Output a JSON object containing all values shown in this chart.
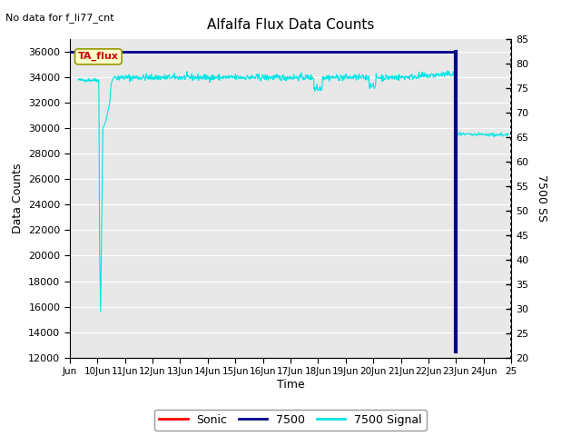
{
  "title": "Alfalfa Flux Data Counts",
  "subtitle": "No data for f_li77_cnt",
  "xlabel": "Time",
  "ylabel": "Data Counts",
  "ylabel_right": "7500 SS",
  "annotation": "TA_flux",
  "xlim_days": [
    9,
    25
  ],
  "ylim_left": [
    12000,
    37000
  ],
  "ylim_right": [
    20,
    85
  ],
  "left_yticks": [
    12000,
    14000,
    16000,
    18000,
    20000,
    22000,
    24000,
    26000,
    28000,
    30000,
    32000,
    34000,
    36000
  ],
  "right_yticks": [
    20,
    25,
    30,
    35,
    40,
    45,
    50,
    55,
    60,
    65,
    70,
    75,
    80,
    85
  ],
  "xtick_labels": [
    "Jun",
    "10Jun",
    "11Jun",
    "12Jun",
    "13Jun",
    "14Jun",
    "15Jun",
    "16Jun",
    "17Jun",
    "18Jun",
    "19Jun",
    "20Jun",
    "21Jun",
    "22Jun",
    "23Jun",
    "24Jun",
    "25"
  ],
  "xtick_positions": [
    9,
    10,
    11,
    12,
    13,
    14,
    15,
    16,
    17,
    18,
    19,
    20,
    21,
    22,
    23,
    24,
    25
  ],
  "plot_bg": "#e8e8e8",
  "line_7500_signal_color": "#00e5e5",
  "line_7500_color": "#00008b",
  "line_sonic_color": "#ff0000",
  "grid_color": "#ffffff"
}
